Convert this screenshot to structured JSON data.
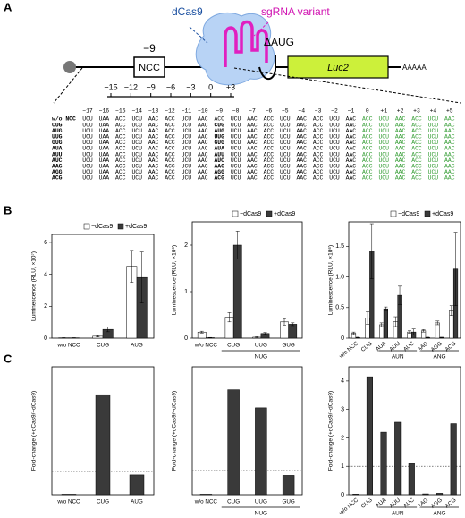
{
  "panel_labels": [
    "A",
    "B",
    "C"
  ],
  "diagram": {
    "dcas9_label": "dCas9",
    "sgrna_label": "sgRNA variant",
    "position_label": "−9",
    "box_label": "NCC",
    "deletion_label": "ΔAUG",
    "reporter_label": "Luc2",
    "polya_label": "AAAAA",
    "ruler": [
      "−15",
      "−12",
      "−9",
      "−6",
      "−3",
      "0",
      "+3"
    ],
    "table": {
      "header": [
        "−17",
        "−16",
        "−15",
        "−14",
        "−13",
        "−12",
        "−11",
        "−10",
        "−9",
        "−8",
        "−7",
        "−6",
        "−5",
        "−4",
        "−3",
        "−2",
        "−1",
        "0",
        "+1",
        "+2",
        "+3",
        "+4",
        "+5"
      ],
      "rows": [
        {
          "label": "w/o NCC",
          "codons": [
            "UCU",
            "UAA",
            "ACC",
            "UCU",
            "AAC",
            "ACC",
            "UCU",
            "AAC",
            "ACC",
            "UCU",
            "AAC",
            "ACC",
            "UCU",
            "AAC",
            "ACC",
            "UCU",
            "AAC",
            "ACC",
            "UCU",
            "AAC",
            "ACC",
            "UCU",
            "AAC"
          ]
        },
        {
          "label": "CUG",
          "codons": [
            "UCU",
            "UAA",
            "ACC",
            "UCU",
            "AAC",
            "ACC",
            "UCU",
            "AAC",
            "CUG",
            "UCU",
            "AAC",
            "ACC",
            "UCU",
            "AAC",
            "ACC",
            "UCU",
            "AAC",
            "ACC",
            "UCU",
            "AAC",
            "ACC",
            "UCU",
            "AAC"
          ]
        },
        {
          "label": "AUG",
          "codons": [
            "UCU",
            "UAA",
            "ACC",
            "UCU",
            "AAC",
            "ACC",
            "UCU",
            "AAC",
            "AUG",
            "UCU",
            "AAC",
            "ACC",
            "UCU",
            "AAC",
            "ACC",
            "UCU",
            "AAC",
            "ACC",
            "UCU",
            "AAC",
            "ACC",
            "UCU",
            "AAC"
          ]
        },
        {
          "label": "UUG",
          "codons": [
            "UCU",
            "UAA",
            "ACC",
            "UCU",
            "AAC",
            "ACC",
            "UCU",
            "AAC",
            "UUG",
            "UCU",
            "AAC",
            "ACC",
            "UCU",
            "AAC",
            "ACC",
            "UCU",
            "AAC",
            "ACC",
            "UCU",
            "AAC",
            "ACC",
            "UCU",
            "AAC"
          ]
        },
        {
          "label": "GUG",
          "codons": [
            "UCU",
            "UAA",
            "ACC",
            "UCU",
            "AAC",
            "ACC",
            "UCU",
            "AAC",
            "GUG",
            "UCU",
            "AAC",
            "ACC",
            "UCU",
            "AAC",
            "ACC",
            "UCU",
            "AAC",
            "ACC",
            "UCU",
            "AAC",
            "ACC",
            "UCU",
            "AAC"
          ]
        },
        {
          "label": "AUA",
          "codons": [
            "UCU",
            "UAA",
            "ACC",
            "UCU",
            "AAC",
            "ACC",
            "UCU",
            "AAC",
            "AUA",
            "UCU",
            "AAC",
            "ACC",
            "UCU",
            "AAC",
            "ACC",
            "UCU",
            "AAC",
            "ACC",
            "UCU",
            "AAC",
            "ACC",
            "UCU",
            "AAC"
          ]
        },
        {
          "label": "AUU",
          "codons": [
            "UCU",
            "UAA",
            "ACC",
            "UCU",
            "AAC",
            "ACC",
            "UCU",
            "AAC",
            "AUU",
            "UCU",
            "AAC",
            "ACC",
            "UCU",
            "AAC",
            "ACC",
            "UCU",
            "AAC",
            "ACC",
            "UCU",
            "AAC",
            "ACC",
            "UCU",
            "AAC"
          ]
        },
        {
          "label": "AUC",
          "codons": [
            "UCU",
            "UAA",
            "ACC",
            "UCU",
            "AAC",
            "ACC",
            "UCU",
            "AAC",
            "AUC",
            "UCU",
            "AAC",
            "ACC",
            "UCU",
            "AAC",
            "ACC",
            "UCU",
            "AAC",
            "ACC",
            "UCU",
            "AAC",
            "ACC",
            "UCU",
            "AAC"
          ]
        },
        {
          "label": "AAG",
          "codons": [
            "UCU",
            "UAA",
            "ACC",
            "UCU",
            "AAC",
            "ACC",
            "UCU",
            "AAC",
            "AAG",
            "UCU",
            "AAC",
            "ACC",
            "UCU",
            "AAC",
            "ACC",
            "UCU",
            "AAC",
            "ACC",
            "UCU",
            "AAC",
            "ACC",
            "UCU",
            "AAC"
          ]
        },
        {
          "label": "AGG",
          "codons": [
            "UCU",
            "UAA",
            "ACC",
            "UCU",
            "AAC",
            "ACC",
            "UCU",
            "AAC",
            "AGG",
            "UCU",
            "AAC",
            "ACC",
            "UCU",
            "AAC",
            "ACC",
            "UCU",
            "AAC",
            "ACC",
            "UCU",
            "AAC",
            "ACC",
            "UCU",
            "AAC"
          ]
        },
        {
          "label": "ACG",
          "codons": [
            "UCU",
            "UAA",
            "ACC",
            "UCU",
            "AAC",
            "ACC",
            "UCU",
            "AAC",
            "ACG",
            "UCU",
            "AAC",
            "ACC",
            "UCU",
            "AAC",
            "ACC",
            "UCU",
            "AAC",
            "ACC",
            "UCU",
            "AAC",
            "ACC",
            "UCU",
            "AAC"
          ]
        }
      ]
    }
  },
  "chart_data": [
    {
      "type": "bar",
      "ylabel": "Luminescence (RLU, ×10⁷)",
      "categories": [
        "w/o NCC",
        "CUG",
        "AUG"
      ],
      "x_groups": [
        null,
        null,
        null
      ],
      "series": [
        {
          "name": "−dCas9",
          "color": "#ffffff",
          "values": [
            0.02,
            0.12,
            4.5
          ],
          "errors": [
            0.01,
            0.05,
            1.0
          ]
        },
        {
          "name": "+dCas9",
          "color": "#3a3a3a",
          "values": [
            0.02,
            0.55,
            3.8
          ],
          "errors": [
            0.01,
            0.15,
            1.6
          ]
        }
      ],
      "ylim": [
        0,
        6.5
      ],
      "yticks": [
        0,
        2,
        4,
        6
      ],
      "legend": "top-right"
    },
    {
      "type": "bar",
      "ylabel": "Luminescence (RLU, ×10⁶)",
      "categories": [
        "w/o NCC",
        "CUG",
        "UUG",
        "GUG"
      ],
      "x_groups": [
        null,
        "NUG",
        "NUG",
        "NUG"
      ],
      "series": [
        {
          "name": "−dCas9",
          "color": "#ffffff",
          "values": [
            0.13,
            0.45,
            0.02,
            0.35
          ],
          "errors": [
            0.02,
            0.1,
            0.01,
            0.07
          ]
        },
        {
          "name": "+dCas9",
          "color": "#3a3a3a",
          "values": [
            0.01,
            2.0,
            0.1,
            0.3
          ],
          "errors": [
            0.005,
            0.3,
            0.02,
            0.03
          ]
        }
      ],
      "ylim": [
        0,
        2.5
      ],
      "yticks": [
        0,
        1,
        2
      ],
      "legend": "top-right"
    },
    {
      "type": "bar",
      "ylabel": "Luminescence (RLU, ×10⁶)",
      "categories": [
        "w/o NCC",
        "CUG",
        "AUA",
        "AUU",
        "AUC",
        "AAG",
        "AGG",
        "ACG"
      ],
      "x_groups": [
        null,
        null,
        "AUN",
        "AUN",
        "AUN",
        "ANG",
        "ANG",
        "ANG"
      ],
      "series": [
        {
          "name": "−dCas9",
          "color": "#ffffff",
          "values": [
            0.08,
            0.33,
            0.22,
            0.27,
            0.1,
            0.12,
            0.25,
            0.45
          ],
          "errors": [
            0.02,
            0.1,
            0.03,
            0.08,
            0.02,
            0.02,
            0.03,
            0.08
          ]
        },
        {
          "name": "+dCas9",
          "color": "#3a3a3a",
          "values": [
            0.01,
            1.42,
            0.48,
            0.7,
            0.1,
            0.01,
            0.01,
            1.13
          ],
          "errors": [
            0.005,
            0.45,
            0.03,
            0.15,
            0.05,
            0.005,
            0.005,
            0.6
          ]
        }
      ],
      "ylim": [
        0,
        1.9
      ],
      "yticks": [
        0,
        0.5,
        {
          "value": 1,
          "label": "1.0"
        },
        1.5
      ],
      "legend": "top-right"
    },
    {
      "type": "bar",
      "ylabel": "Fold-change (+dCas9/−dCas9)",
      "categories": [
        "w/o NCC",
        "CUG",
        "AUG"
      ],
      "x_groups": [
        null,
        null,
        null
      ],
      "values": [
        0.02,
        4.3,
        0.85
      ],
      "color": "#3a3a3a",
      "ylim": [
        0,
        5.5
      ],
      "reference_line": 1
    },
    {
      "type": "bar",
      "ylabel": "Fold-change (+dCas9/−dCas9)",
      "categories": [
        "w/o NCC",
        "CUG",
        "UUG",
        "GUG"
      ],
      "x_groups": [
        null,
        "NUG",
        "NUG",
        "NUG"
      ],
      "values": [
        0.02,
        4.35,
        3.6,
        0.8
      ],
      "color": "#3a3a3a",
      "ylim": [
        0,
        5.3
      ],
      "reference_line": 1
    },
    {
      "type": "bar",
      "ylabel": "Fold-change (+dCas9/−dCas9)",
      "categories": [
        "w/o NCC",
        "CUG",
        "AUA",
        "AUU",
        "AUC",
        "AAG",
        "AGG",
        "ACG"
      ],
      "x_groups": [
        null,
        null,
        "AUN",
        "AUN",
        "AUN",
        "ANG",
        "ANG",
        "ANG"
      ],
      "values": [
        0.02,
        4.15,
        2.2,
        2.55,
        1.1,
        0.03,
        0.05,
        2.5
      ],
      "color": "#3a3a3a",
      "ylim": [
        0,
        4.5
      ],
      "yticks": [
        0,
        1,
        2,
        3,
        4
      ],
      "reference_line": 1
    }
  ]
}
